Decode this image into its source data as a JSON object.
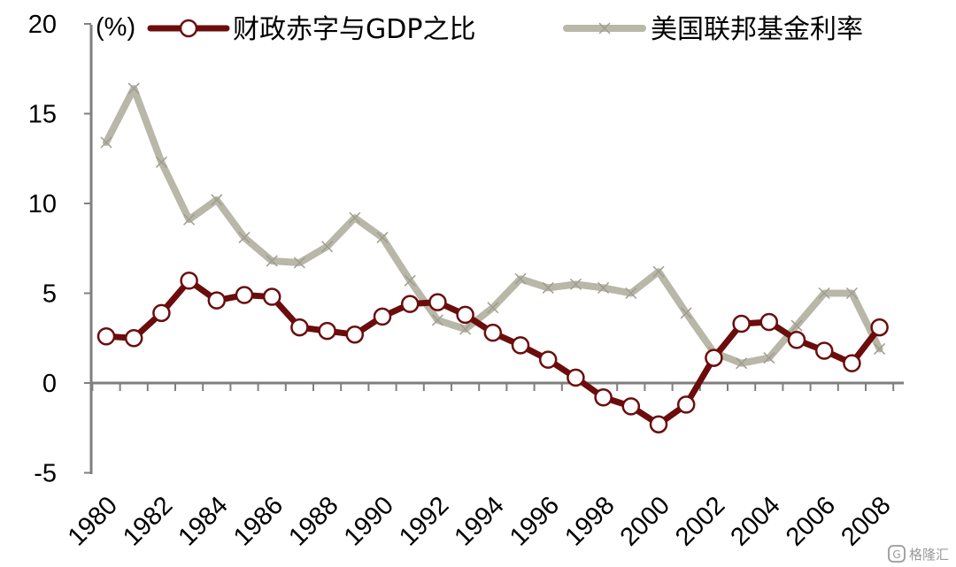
{
  "chart_data": {
    "type": "line",
    "unit_label": "(%)",
    "x": [
      1980,
      1981,
      1982,
      1983,
      1984,
      1985,
      1986,
      1987,
      1988,
      1989,
      1990,
      1991,
      1992,
      1993,
      1994,
      1995,
      1996,
      1997,
      1998,
      1999,
      2000,
      2001,
      2002,
      2003,
      2004,
      2005,
      2006,
      2007,
      2008
    ],
    "x_tick_labels": [
      "1980",
      "1982",
      "1984",
      "1986",
      "1988",
      "1990",
      "1992",
      "1994",
      "1996",
      "1998",
      "2000",
      "2002",
      "2004",
      "2006",
      "2008"
    ],
    "y_ticks": [
      -5,
      0,
      5,
      10,
      15,
      20
    ],
    "y_tick_labels": [
      "-5",
      "0",
      "5",
      "10",
      "15",
      "20"
    ],
    "ylim": [
      -5,
      20
    ],
    "grid": false,
    "legend_position": "top",
    "series": [
      {
        "name": "财政赤字与GDP之比",
        "color": "#6b0d0d",
        "marker": "open-circle",
        "values": [
          2.6,
          2.5,
          3.9,
          5.7,
          4.6,
          4.9,
          4.8,
          3.1,
          2.9,
          2.7,
          3.7,
          4.4,
          4.5,
          3.8,
          2.8,
          2.1,
          1.3,
          0.3,
          -0.8,
          -1.3,
          -2.3,
          -1.2,
          1.4,
          3.3,
          3.4,
          2.4,
          1.8,
          1.1,
          3.1
        ]
      },
      {
        "name": "美国联邦基金利率",
        "color": "#b8b7a8",
        "marker": "x",
        "values": [
          13.4,
          16.4,
          12.3,
          9.1,
          10.2,
          8.1,
          6.8,
          6.7,
          7.6,
          9.2,
          8.1,
          5.7,
          3.5,
          3.0,
          4.2,
          5.8,
          5.3,
          5.5,
          5.3,
          5.0,
          6.2,
          3.9,
          1.7,
          1.1,
          1.4,
          3.2,
          5.0,
          5.0,
          1.9
        ]
      }
    ]
  },
  "watermark": {
    "icon": "g-logo-icon",
    "text": "格隆汇"
  }
}
